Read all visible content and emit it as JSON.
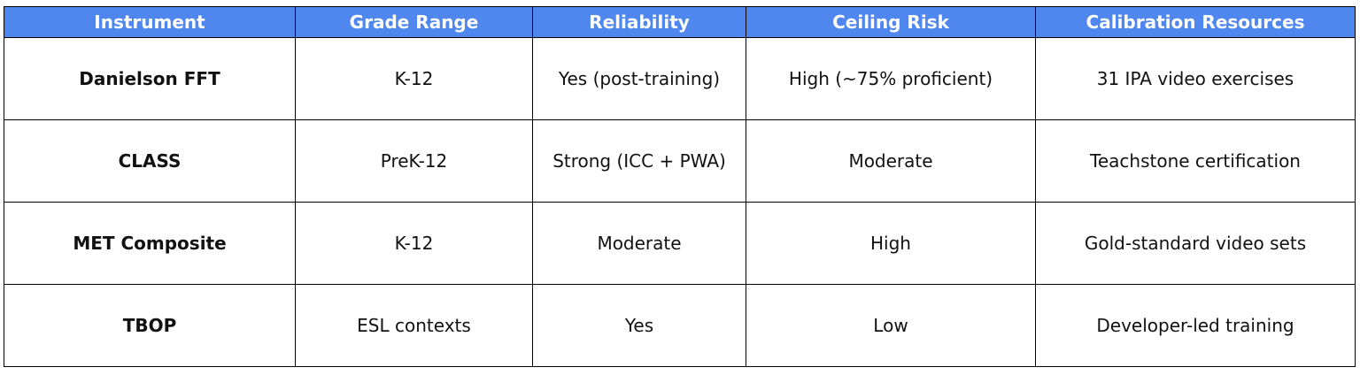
{
  "table": {
    "headers": [
      "Instrument",
      "Grade Range",
      "Reliability",
      "Ceiling Risk",
      "Calibration Resources"
    ],
    "rows": [
      [
        "Danielson FFT",
        "K-12",
        "Yes (post-training)",
        "High (~75% proficient)",
        "31 IPA video exercises"
      ],
      [
        "CLASS",
        "PreK-12",
        "Strong (ICC + PWA)",
        "Moderate",
        "Teachstone certification"
      ],
      [
        "MET Composite",
        "K-12",
        "Moderate",
        "High",
        "Gold-standard video sets"
      ],
      [
        "TBOP",
        "ESL contexts",
        "Yes",
        "Low",
        "Developer-led training"
      ]
    ]
  },
  "colors": {
    "header_background": "#4f87ee",
    "header_text": "#ffffff",
    "border": "#000000",
    "body_text": "#111111"
  }
}
